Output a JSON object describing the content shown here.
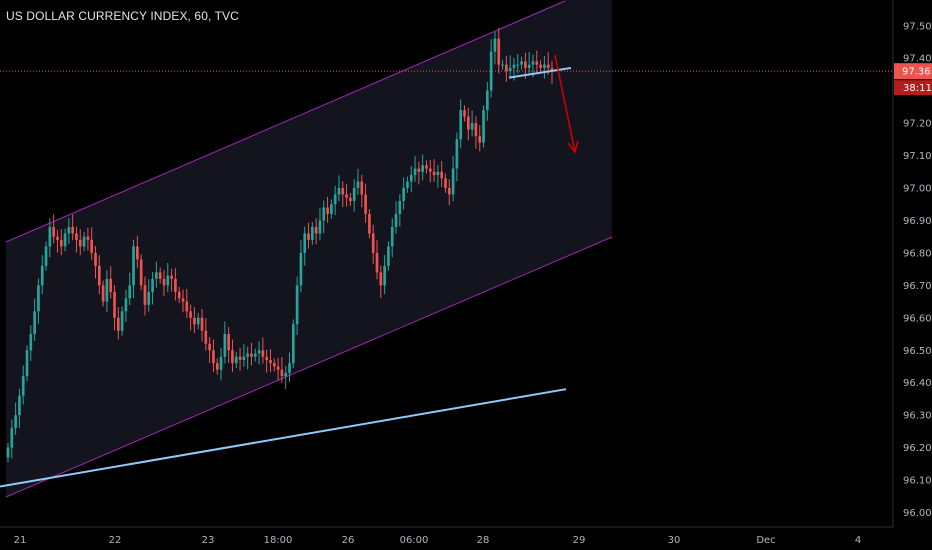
{
  "chart_data": {
    "type": "candlestick",
    "title": "US DOLLAR CURRENCY INDEX, 60, TVC",
    "ylim": [
      95.96,
      97.56
    ],
    "y_ticks": [
      96.0,
      96.1,
      96.2,
      96.3,
      96.4,
      96.5,
      96.6,
      96.7,
      96.8,
      96.9,
      97.0,
      97.1,
      97.2,
      97.3,
      97.4,
      97.5
    ],
    "y_tick_labels": [
      "96.00",
      "96.10",
      "96.20",
      "96.30",
      "96.40",
      "96.50",
      "96.60",
      "96.70",
      "96.80",
      "96.90",
      "97.00",
      "97.10",
      "97.20",
      "97.30",
      "97.40",
      "97.50"
    ],
    "x_tick_labels": [
      "21",
      "22",
      "23",
      "18:00",
      "26",
      "06:00",
      "28",
      "29",
      "30",
      "Dec",
      "4"
    ],
    "last_price": 97.36,
    "last_price_label": "97.36",
    "countdown_label": "38:11",
    "colors": {
      "up": "#26a69a",
      "down": "#ef5350",
      "channel": "#9c27b0",
      "trendline": "#90caf9",
      "arrow": "#d50000",
      "price_line": "#ef5350"
    },
    "close_series": [
      96.2,
      96.26,
      96.3,
      96.36,
      96.42,
      96.5,
      96.55,
      96.62,
      96.7,
      96.76,
      96.82,
      96.88,
      96.85,
      96.84,
      96.82,
      96.86,
      96.88,
      96.86,
      96.84,
      96.82,
      96.85,
      96.84,
      96.8,
      96.76,
      96.7,
      96.65,
      96.72,
      96.68,
      96.6,
      96.56,
      96.62,
      96.66,
      96.7,
      96.82,
      96.78,
      96.7,
      96.64,
      96.68,
      96.72,
      96.74,
      96.72,
      96.7,
      96.73,
      96.72,
      96.68,
      96.66,
      96.65,
      96.62,
      96.6,
      96.58,
      96.6,
      96.56,
      96.52,
      96.5,
      96.46,
      96.44,
      96.48,
      96.55,
      96.5,
      96.46,
      96.48,
      96.47,
      96.48,
      96.49,
      96.48,
      96.49,
      96.5,
      96.48,
      96.47,
      96.46,
      96.45,
      96.44,
      96.42,
      96.43,
      96.46,
      96.58,
      96.7,
      96.8,
      96.86,
      96.84,
      96.88,
      96.86,
      96.9,
      96.94,
      96.92,
      96.95,
      96.98,
      97.0,
      96.98,
      96.97,
      96.96,
      97.0,
      97.02,
      96.98,
      96.92,
      96.86,
      96.8,
      96.74,
      96.7,
      96.76,
      96.82,
      96.88,
      96.92,
      96.96,
      97.0,
      97.02,
      97.04,
      97.06,
      97.05,
      97.07,
      97.06,
      97.05,
      97.04,
      97.05,
      97.03,
      97.0,
      96.98,
      97.06,
      97.15,
      97.24,
      97.22,
      97.18,
      97.2,
      97.16,
      97.14,
      97.24,
      97.3,
      97.42,
      97.46,
      97.38,
      97.38,
      97.36,
      97.37,
      97.38,
      97.38,
      97.39,
      97.37,
      97.38,
      97.39,
      97.38,
      97.37,
      97.38,
      97.37,
      97.36
    ],
    "trendlines": [
      {
        "name": "",
        "from": 96.08,
        "to": 96.38
      },
      {
        "name": "",
        "from": 97.34,
        "to": 97.37
      }
    ]
  }
}
